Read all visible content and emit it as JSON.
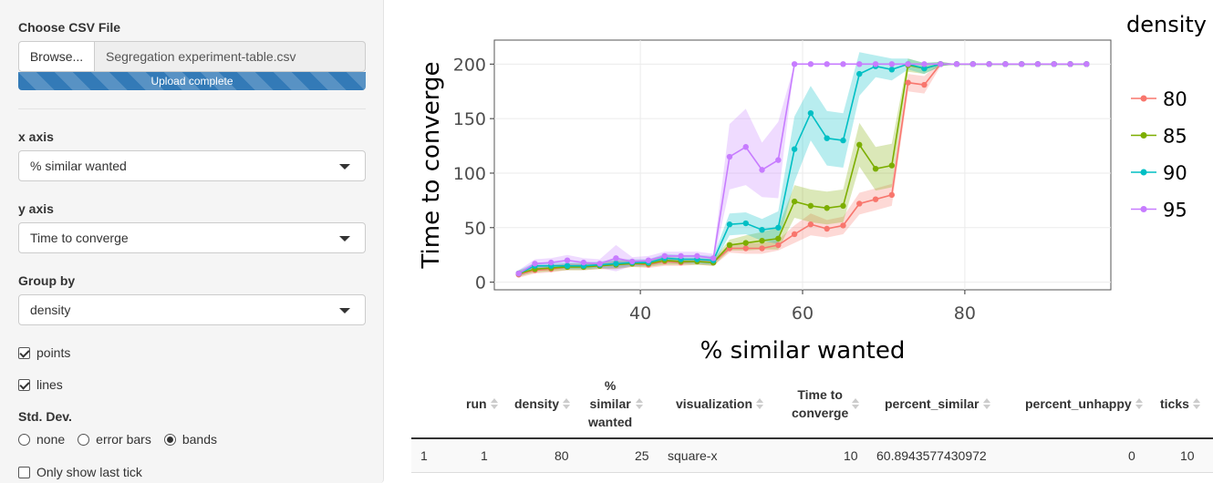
{
  "sidebar": {
    "file_label": "Choose CSV File",
    "browse_label": "Browse...",
    "file_name": "Segregation experiment-table.csv",
    "upload_status": "Upload complete",
    "x_axis_label": "x axis",
    "x_axis_value": "% similar wanted",
    "y_axis_label": "y axis",
    "y_axis_value": "Time to converge",
    "group_label": "Group by",
    "group_value": "density",
    "points_label": "points",
    "points_checked": true,
    "lines_label": "lines",
    "lines_checked": true,
    "stddev_label": "Std. Dev.",
    "stddev_options": [
      "none",
      "error bars",
      "bands"
    ],
    "stddev_selected": "bands",
    "last_tick_label": "Only show last tick",
    "last_tick_checked": false
  },
  "chart_data": {
    "type": "line",
    "xlabel": "% similar wanted",
    "ylabel": "Time to converge",
    "xlim": [
      22,
      98
    ],
    "ylim": [
      -7,
      222
    ],
    "x_ticks": [
      40,
      60,
      80
    ],
    "y_ticks": [
      0,
      50,
      100,
      150,
      200
    ],
    "grid": true,
    "legend_title": "density",
    "legend_position": "right",
    "x": [
      25,
      27,
      29,
      31,
      33,
      35,
      37,
      39,
      41,
      43,
      45,
      47,
      49,
      51,
      53,
      55,
      57,
      59,
      61,
      63,
      65,
      67,
      69,
      71,
      73,
      75,
      77,
      79,
      81,
      83,
      85,
      87,
      89,
      91,
      93,
      95
    ],
    "series": [
      {
        "name": "80",
        "color": "#f8766d",
        "values": [
          7,
          11,
          12,
          14,
          14,
          15,
          16,
          17,
          16,
          19,
          18,
          19,
          18,
          31,
          31,
          31,
          34,
          44,
          53,
          49,
          52,
          72,
          76,
          80,
          183,
          181,
          200,
          200,
          200,
          200,
          200,
          200,
          200,
          200,
          200,
          200
        ],
        "band": [
          3,
          3,
          3,
          3,
          3,
          3,
          4,
          3,
          3,
          4,
          3,
          3,
          3,
          4,
          5,
          5,
          5,
          8,
          10,
          8,
          8,
          10,
          10,
          10,
          8,
          8,
          2,
          0,
          0,
          0,
          0,
          0,
          0,
          0,
          0,
          0
        ]
      },
      {
        "name": "85",
        "color": "#7cae00",
        "values": [
          8,
          12,
          13,
          14,
          14,
          15,
          16,
          17,
          17,
          20,
          19,
          19,
          18,
          34,
          36,
          38,
          40,
          74,
          70,
          68,
          70,
          126,
          104,
          107,
          199,
          196,
          200,
          200,
          200,
          200,
          200,
          200,
          200,
          200,
          200,
          200
        ],
        "band": [
          3,
          3,
          3,
          3,
          3,
          3,
          4,
          3,
          3,
          4,
          3,
          3,
          3,
          5,
          7,
          8,
          10,
          15,
          15,
          15,
          15,
          20,
          20,
          20,
          6,
          5,
          2,
          0,
          0,
          0,
          0,
          0,
          0,
          0,
          0,
          0
        ]
      },
      {
        "name": "90",
        "color": "#00bfc4",
        "values": [
          8,
          15,
          15,
          15,
          15,
          16,
          17,
          18,
          18,
          22,
          21,
          21,
          20,
          53,
          54,
          48,
          50,
          122,
          155,
          132,
          130,
          191,
          198,
          195,
          200,
          196,
          200,
          200,
          200,
          200,
          200,
          200,
          200,
          200,
          200,
          200
        ],
        "band": [
          3,
          3,
          3,
          3,
          3,
          3,
          4,
          3,
          3,
          4,
          4,
          4,
          4,
          10,
          10,
          10,
          15,
          30,
          25,
          25,
          25,
          20,
          10,
          10,
          5,
          5,
          2,
          0,
          0,
          0,
          0,
          0,
          0,
          0,
          0,
          0
        ]
      },
      {
        "name": "95",
        "color": "#c77cff",
        "values": [
          8,
          17,
          18,
          20,
          18,
          17,
          22,
          19,
          20,
          24,
          24,
          24,
          22,
          115,
          124,
          103,
          112,
          200,
          200,
          200,
          200,
          200,
          200,
          200,
          200,
          200,
          200,
          200,
          200,
          200,
          200,
          200,
          200,
          200,
          200,
          200
        ],
        "band": [
          3,
          4,
          4,
          5,
          4,
          4,
          12,
          4,
          4,
          4,
          4,
          4,
          4,
          30,
          35,
          25,
          35,
          0,
          0,
          0,
          0,
          0,
          0,
          0,
          0,
          0,
          0,
          0,
          0,
          0,
          0,
          0,
          0,
          0,
          0,
          0
        ]
      }
    ]
  },
  "table": {
    "headers": [
      {
        "label": "run",
        "lines": [
          "run"
        ]
      },
      {
        "label": "density",
        "lines": [
          "density"
        ]
      },
      {
        "label": "% similar wanted",
        "lines": [
          "%",
          "similar",
          "wanted"
        ]
      },
      {
        "label": "visualization",
        "lines": [
          "visualization"
        ]
      },
      {
        "label": "Time to converge",
        "lines": [
          "Time to",
          "converge"
        ]
      },
      {
        "label": "percent_similar",
        "lines": [
          "percent_similar"
        ]
      },
      {
        "label": "percent_unhappy",
        "lines": [
          "percent_unhappy"
        ]
      },
      {
        "label": "ticks",
        "lines": [
          "ticks"
        ]
      }
    ],
    "rows": [
      {
        "index": "1",
        "cells": [
          "1",
          "80",
          "25",
          "square-x",
          "10",
          "60.8943577430972",
          "0",
          "10"
        ]
      }
    ]
  }
}
